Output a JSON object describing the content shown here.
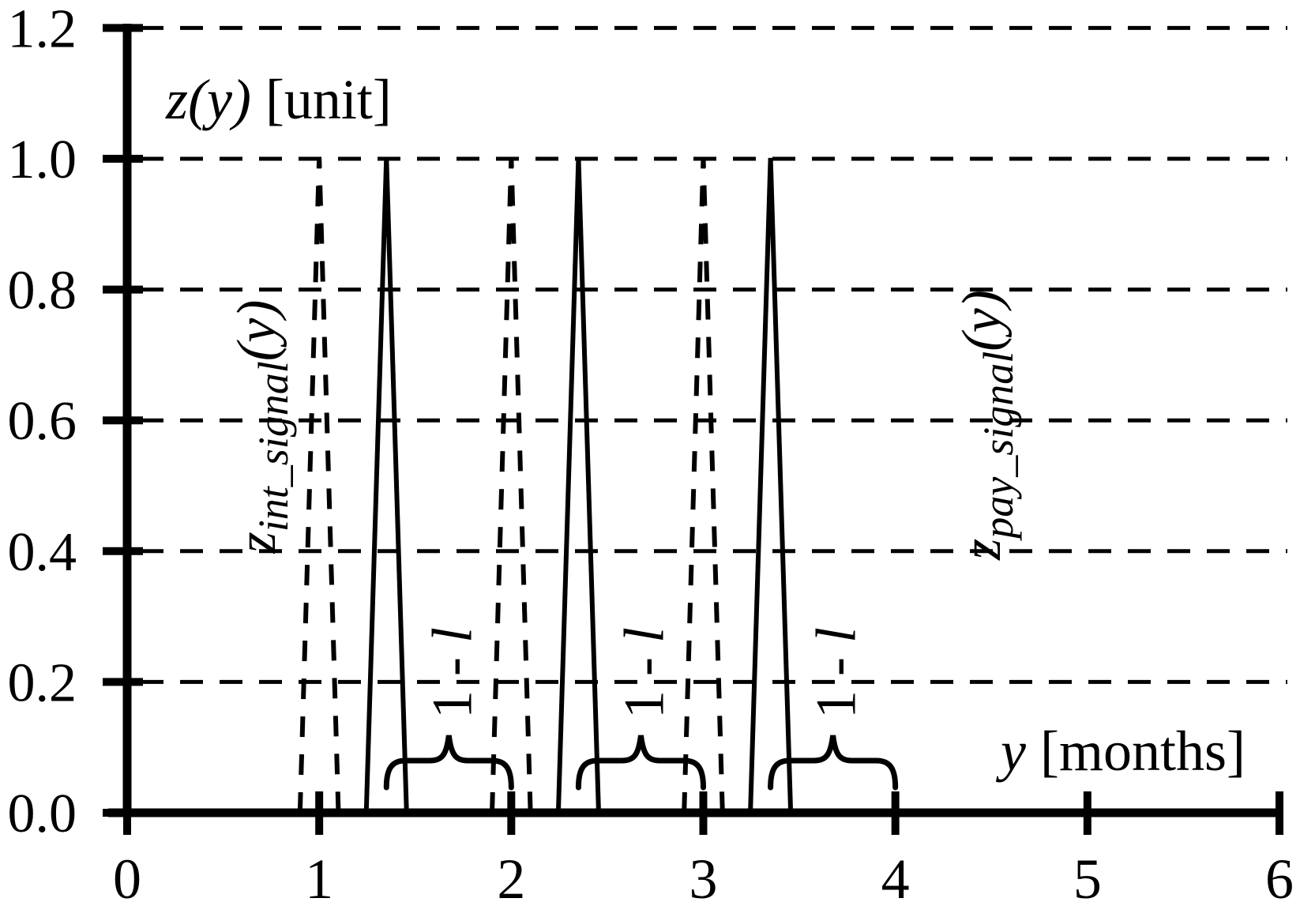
{
  "title": {
    "math": "z(y)",
    "unit": " [unit]"
  },
  "x_axis": {
    "label_math": "y",
    "label_unit": " [months]",
    "tick_labels": [
      "0",
      "1",
      "2",
      "3",
      "4",
      "5",
      "6"
    ],
    "tick_values": [
      0,
      1,
      2,
      3,
      4,
      5,
      6
    ],
    "range": [
      0,
      6
    ]
  },
  "y_axis": {
    "tick_labels": [
      "0.0",
      "0.2",
      "0.4",
      "0.6",
      "0.8",
      "1.0",
      "1.2"
    ],
    "tick_values": [
      0,
      0.2,
      0.4,
      0.6,
      0.8,
      1.0,
      1.2
    ],
    "range": [
      0,
      1.2
    ],
    "gridline_values": [
      0.2,
      0.4,
      0.6,
      0.8,
      1.0,
      1.2
    ]
  },
  "series_labels": {
    "left": {
      "base": "z",
      "sub": "int_signal",
      "arg": "(y)"
    },
    "right": {
      "base": "z",
      "sub": "pay_signal",
      "arg": "(y)"
    }
  },
  "colors": {
    "ink": "#000000",
    "background": "#ffffff"
  },
  "chart_data": {
    "type": "line",
    "title": "z(y) [unit]",
    "xlabel": "y [months]",
    "ylabel": "z(y) [unit]",
    "xlim": [
      0,
      6
    ],
    "ylim": [
      0,
      1.2
    ],
    "x_ticks": [
      0,
      1,
      2,
      3,
      4,
      5,
      6
    ],
    "y_ticks": [
      0,
      0.2,
      0.4,
      0.6,
      0.8,
      1.0,
      1.2
    ],
    "grid": "dashed horizontal gridlines at every y tick from 0.2 to 1.2",
    "series": [
      {
        "name": "z_int_signal(y)",
        "style": "dashed",
        "shape": "triangular pulse train",
        "amplitude": 1.0,
        "pulse_centers": [
          1,
          2,
          3
        ],
        "pulse_half_width": 0.1
      },
      {
        "name": "z_pay_signal(y)",
        "style": "solid",
        "shape": "triangular pulse train",
        "amplitude": 1.0,
        "pulse_centers": [
          1.35,
          2.35,
          3.35
        ],
        "pulse_half_width": 0.105
      }
    ],
    "annotations": [
      {
        "type": "underbrace",
        "label": "1 - l",
        "label_num": "1 - ",
        "label_var": "l",
        "x_from": 1.35,
        "x_to": 2.0
      },
      {
        "type": "underbrace",
        "label": "1 - l",
        "label_num": "1 - ",
        "label_var": "l",
        "x_from": 2.35,
        "x_to": 3.0
      },
      {
        "type": "underbrace",
        "label": "1 - l",
        "label_num": "1 - ",
        "label_var": "l",
        "x_from": 3.35,
        "x_to": 4.0
      }
    ]
  }
}
